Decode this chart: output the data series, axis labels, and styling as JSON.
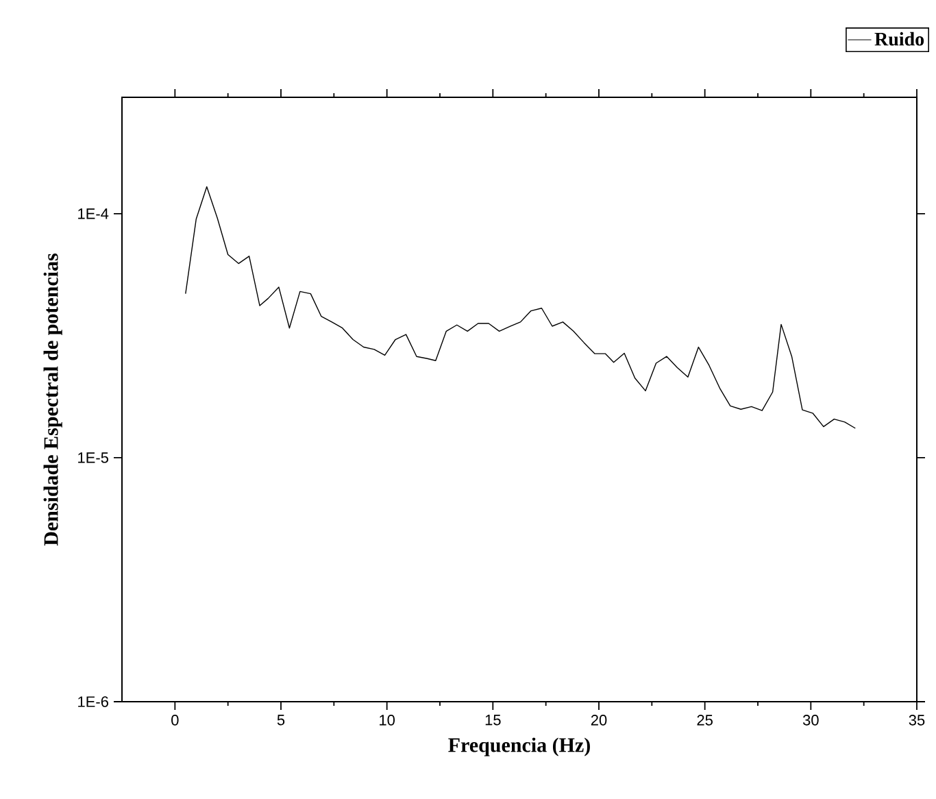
{
  "chart_data": {
    "type": "line",
    "xlabel": "Frequencia (Hz)",
    "ylabel": "Densidade Espectral de potencias",
    "x": [
      0.5,
      1.0,
      1.5,
      2.0,
      2.5,
      3.0,
      3.5,
      4.0,
      4.4,
      4.9,
      5.4,
      5.9,
      6.4,
      6.9,
      7.4,
      7.9,
      8.4,
      8.9,
      9.4,
      9.9,
      10.4,
      10.9,
      11.4,
      11.9,
      12.3,
      12.8,
      13.3,
      13.8,
      14.3,
      14.8,
      15.3,
      15.8,
      16.3,
      16.8,
      17.3,
      17.8,
      18.3,
      18.8,
      19.3,
      19.8,
      20.3,
      20.7,
      21.2,
      21.7,
      22.2,
      22.7,
      23.2,
      23.7,
      24.2,
      24.7,
      25.2,
      25.7,
      26.2,
      26.7,
      27.2,
      27.7,
      28.2,
      28.6,
      29.1,
      29.6,
      30.1,
      30.6,
      31.1,
      31.6,
      32.1
    ],
    "series": [
      {
        "name": "Ruido",
        "color": "#000000",
        "values": [
          4.7e-05,
          9.5e-05,
          0.000129,
          9.6e-05,
          6.8e-05,
          6.25e-05,
          6.7e-05,
          4.2e-05,
          4.5e-05,
          5e-05,
          3.4e-05,
          4.8e-05,
          4.7e-05,
          3.8e-05,
          3.6e-05,
          3.4e-05,
          3.05e-05,
          2.84e-05,
          2.78e-05,
          2.63e-05,
          3.05e-05,
          3.2e-05,
          2.6e-05,
          2.55e-05,
          2.5e-05,
          3.3e-05,
          3.5e-05,
          3.3e-05,
          3.55e-05,
          3.55e-05,
          3.3e-05,
          3.45e-05,
          3.6e-05,
          4e-05,
          4.1e-05,
          3.46e-05,
          3.6e-05,
          3.3e-05,
          2.96e-05,
          2.67e-05,
          2.67e-05,
          2.46e-05,
          2.68e-05,
          2.12e-05,
          1.88e-05,
          2.44e-05,
          2.6e-05,
          2.34e-05,
          2.14e-05,
          2.84e-05,
          2.39e-05,
          1.93e-05,
          1.63e-05,
          1.58e-05,
          1.62e-05,
          1.56e-05,
          1.86e-05,
          3.52e-05,
          2.6e-05,
          1.57e-05,
          1.52e-05,
          1.34e-05,
          1.44e-05,
          1.4e-05,
          1.32e-05
        ]
      }
    ],
    "xlim": [
      -2.5,
      35
    ],
    "xticks": [
      0,
      5,
      10,
      15,
      20,
      25,
      30,
      35
    ],
    "ylim": [
      1e-06,
      0.0003
    ],
    "yticks": [
      {
        "value": 1e-06,
        "label": "1E-6"
      },
      {
        "value": 1e-05,
        "label": "1E-5"
      },
      {
        "value": 0.0001,
        "label": "1E-4"
      }
    ],
    "log": true,
    "legend": "top right",
    "line_style": "solid",
    "marker": "none"
  }
}
